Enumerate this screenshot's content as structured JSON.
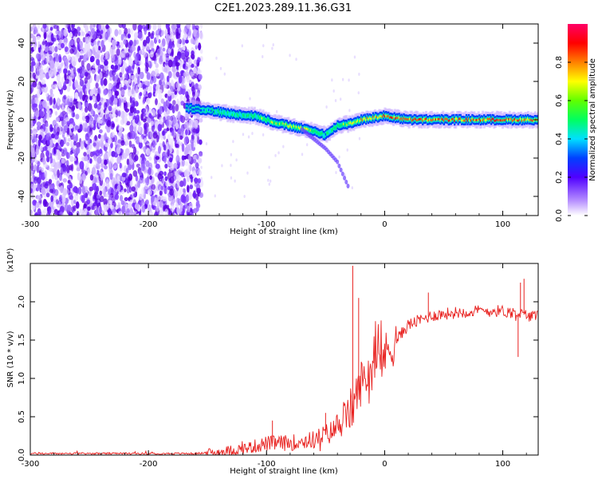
{
  "title": "C2E1.2023.289.11.36.G31",
  "chart_data": [
    {
      "type": "heatmap",
      "name": "spectrogram",
      "xlabel": "Height of straight line (km)",
      "ylabel": "Frequency (Hz)",
      "xlim": [
        -300,
        130
      ],
      "ylim": [
        -50,
        50
      ],
      "x_ticks": [
        "-300",
        "-200",
        "-100",
        "0",
        "100"
      ],
      "x_tick_values": [
        -300,
        -200,
        -100,
        0,
        100
      ],
      "y_ticks": [
        "-40",
        "-20",
        "0",
        "20",
        "40"
      ],
      "y_tick_values": [
        -40,
        -20,
        0,
        20,
        40
      ],
      "noise_region": [
        -300,
        -155
      ],
      "signal_ridge": {
        "x": [
          -165,
          -150,
          -130,
          -110,
          -90,
          -75,
          -60,
          -50,
          -40,
          -30,
          -20,
          0,
          20,
          60,
          100,
          130
        ],
        "freq": [
          6,
          5,
          3,
          2,
          -2,
          -4,
          -6,
          -8,
          -3,
          -2,
          0,
          2,
          0,
          0,
          0,
          0
        ],
        "amplitude": [
          0.3,
          0.5,
          0.55,
          0.6,
          0.7,
          0.75,
          0.7,
          0.5,
          0.6,
          0.7,
          0.8,
          0.9,
          0.95,
          0.95,
          0.95,
          0.9
        ]
      },
      "tail": {
        "x": [
          -70,
          -50,
          -40,
          -30
        ],
        "freq": [
          -5,
          -15,
          -22,
          -36
        ]
      },
      "colorbar": {
        "label": "Normalized spectral amplitude",
        "ticks": [
          "0.0",
          "0.2",
          "0.4",
          "0.6",
          "0.8"
        ],
        "tick_values": [
          0.0,
          0.2,
          0.4,
          0.6,
          0.8
        ],
        "range": [
          0,
          1
        ]
      }
    },
    {
      "type": "line",
      "name": "snr",
      "xlabel": "Height of straight line (km)",
      "ylabel": "SNR (10 * v/v)",
      "multiplier": "(x10⁴)",
      "xlim": [
        -300,
        130
      ],
      "ylim": [
        0,
        2.5
      ],
      "x_ticks": [
        "-300",
        "-200",
        "-100",
        "0",
        "100"
      ],
      "x_tick_values": [
        -300,
        -200,
        -100,
        0,
        100
      ],
      "y_ticks": [
        "0.0",
        "0.5",
        "1.0",
        "1.5",
        "2.0"
      ],
      "y_tick_values": [
        0.0,
        0.5,
        1.0,
        1.5,
        2.0
      ],
      "color": "#e8201e",
      "trend": {
        "x": [
          -300,
          -160,
          -140,
          -120,
          -100,
          -80,
          -60,
          -45,
          -35,
          -28,
          -25,
          -20,
          -10,
          0,
          10,
          20,
          40,
          60,
          80,
          100,
          130
        ],
        "y": [
          0.02,
          0.02,
          0.04,
          0.08,
          0.15,
          0.16,
          0.2,
          0.3,
          0.45,
          0.6,
          0.7,
          0.95,
          1.15,
          1.3,
          1.5,
          1.7,
          1.82,
          1.86,
          1.88,
          1.88,
          1.8
        ]
      },
      "spikes": [
        {
          "x": -27,
          "y": 2.47
        },
        {
          "x": -22,
          "y": 2.05
        },
        {
          "x": 37,
          "y": 2.12
        },
        {
          "x": 115,
          "y": 2.25
        },
        {
          "x": 118,
          "y": 2.3
        },
        {
          "x": 113,
          "y": 1.28
        },
        {
          "x": -95,
          "y": 0.45
        },
        {
          "x": -50,
          "y": 0.55
        }
      ]
    }
  ]
}
